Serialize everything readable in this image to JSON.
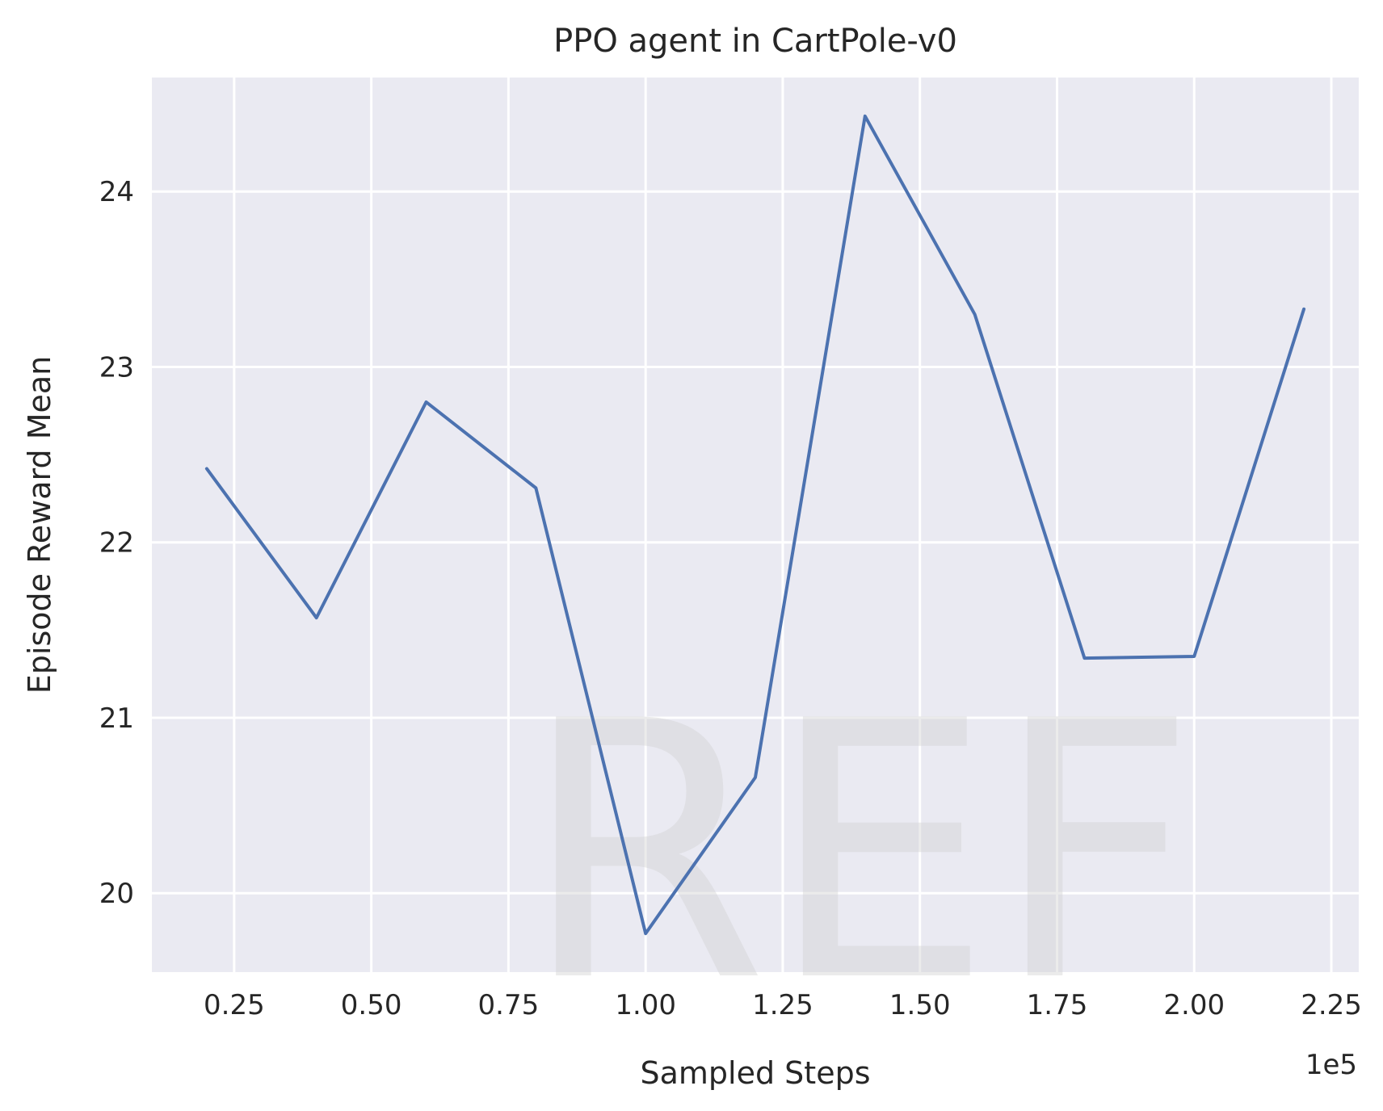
{
  "chart_data": {
    "type": "line",
    "title": "PPO agent in CartPole-v0",
    "xlabel": "Sampled Steps",
    "ylabel": "Episode Reward Mean",
    "x_offset_label": "1e5",
    "xlim": [
      0.1,
      2.3
    ],
    "ylim": [
      19.55,
      24.65
    ],
    "xticks": [
      0.25,
      0.5,
      0.75,
      1.0,
      1.25,
      1.5,
      1.75,
      2.0,
      2.25
    ],
    "xtick_labels": [
      "0.25",
      "0.50",
      "0.75",
      "1.00",
      "1.25",
      "1.50",
      "1.75",
      "2.00",
      "2.25"
    ],
    "yticks": [
      20,
      21,
      22,
      23,
      24
    ],
    "ytick_labels": [
      "20",
      "21",
      "22",
      "23",
      "24"
    ],
    "grid": true,
    "x": [
      0.2,
      0.4,
      0.6,
      0.8,
      1.0,
      1.2,
      1.4,
      1.6,
      1.8,
      2.0,
      2.2
    ],
    "series": [
      {
        "values": [
          22.42,
          21.57,
          22.8,
          22.31,
          19.77,
          20.66,
          24.43,
          23.3,
          21.34,
          21.35,
          23.33
        ]
      }
    ],
    "colors": {
      "line": "#4c72b0",
      "plot_bg": "#eaeaf2",
      "grid": "#ffffff",
      "text": "#262626"
    }
  },
  "watermark": "REF"
}
